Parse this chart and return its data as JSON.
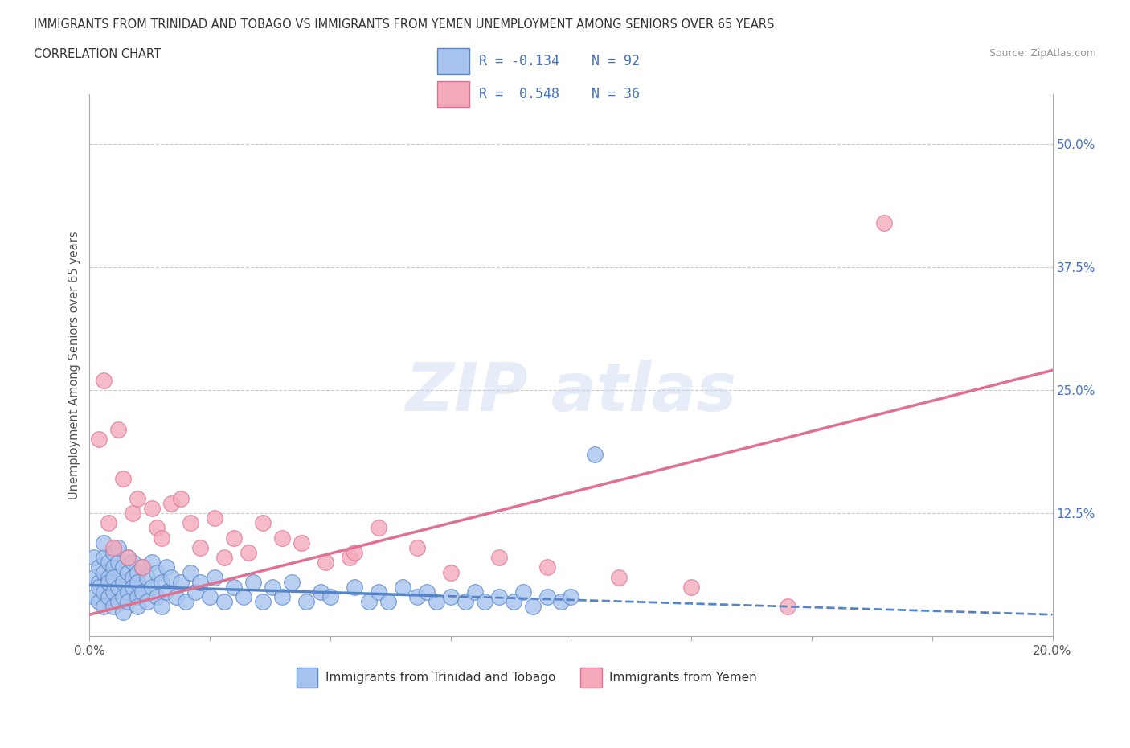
{
  "title_line1": "IMMIGRANTS FROM TRINIDAD AND TOBAGO VS IMMIGRANTS FROM YEMEN UNEMPLOYMENT AMONG SENIORS OVER 65 YEARS",
  "title_line2": "CORRELATION CHART",
  "source_text": "Source: ZipAtlas.com",
  "ylabel": "Unemployment Among Seniors over 65 years",
  "xlim": [
    0.0,
    0.2
  ],
  "ylim": [
    0.0,
    0.55
  ],
  "xticks": [
    0.0,
    0.025,
    0.05,
    0.075,
    0.1,
    0.125,
    0.15,
    0.175,
    0.2
  ],
  "xticklabels": [
    "0.0%",
    "",
    "",
    "",
    "",
    "",
    "",
    "",
    "20.0%"
  ],
  "yticks": [
    0.0,
    0.125,
    0.25,
    0.375,
    0.5
  ],
  "yticklabels": [
    "",
    "12.5%",
    "25.0%",
    "37.5%",
    "50.0%"
  ],
  "legend_R1": "R = -0.134",
  "legend_N1": "N = 92",
  "legend_R2": "R =  0.548",
  "legend_N2": "N = 36",
  "color_blue": "#a8c4ee",
  "color_pink": "#f4aabb",
  "color_blue_line": "#5585c8",
  "color_pink_line": "#e07090",
  "color_text_blue": "#4472c4",
  "trinidad_x": [
    0.001,
    0.001,
    0.001,
    0.002,
    0.002,
    0.002,
    0.002,
    0.003,
    0.003,
    0.003,
    0.003,
    0.003,
    0.004,
    0.004,
    0.004,
    0.004,
    0.005,
    0.005,
    0.005,
    0.005,
    0.005,
    0.006,
    0.006,
    0.006,
    0.006,
    0.007,
    0.007,
    0.007,
    0.007,
    0.008,
    0.008,
    0.008,
    0.008,
    0.009,
    0.009,
    0.009,
    0.01,
    0.01,
    0.01,
    0.01,
    0.011,
    0.011,
    0.012,
    0.012,
    0.013,
    0.013,
    0.014,
    0.014,
    0.015,
    0.015,
    0.016,
    0.016,
    0.017,
    0.018,
    0.019,
    0.02,
    0.021,
    0.022,
    0.023,
    0.025,
    0.026,
    0.028,
    0.03,
    0.032,
    0.034,
    0.036,
    0.038,
    0.04,
    0.042,
    0.045,
    0.048,
    0.05,
    0.055,
    0.058,
    0.06,
    0.062,
    0.065,
    0.068,
    0.07,
    0.072,
    0.075,
    0.078,
    0.08,
    0.082,
    0.085,
    0.088,
    0.09,
    0.092,
    0.095,
    0.098,
    0.1,
    0.105
  ],
  "trinidad_y": [
    0.06,
    0.04,
    0.08,
    0.055,
    0.035,
    0.07,
    0.05,
    0.065,
    0.045,
    0.08,
    0.03,
    0.095,
    0.06,
    0.04,
    0.075,
    0.055,
    0.07,
    0.045,
    0.085,
    0.03,
    0.06,
    0.05,
    0.075,
    0.035,
    0.09,
    0.055,
    0.04,
    0.07,
    0.025,
    0.065,
    0.045,
    0.08,
    0.035,
    0.06,
    0.05,
    0.075,
    0.04,
    0.065,
    0.03,
    0.055,
    0.07,
    0.045,
    0.06,
    0.035,
    0.075,
    0.05,
    0.04,
    0.065,
    0.03,
    0.055,
    0.07,
    0.045,
    0.06,
    0.04,
    0.055,
    0.035,
    0.065,
    0.045,
    0.055,
    0.04,
    0.06,
    0.035,
    0.05,
    0.04,
    0.055,
    0.035,
    0.05,
    0.04,
    0.055,
    0.035,
    0.045,
    0.04,
    0.05,
    0.035,
    0.045,
    0.035,
    0.05,
    0.04,
    0.045,
    0.035,
    0.04,
    0.035,
    0.045,
    0.035,
    0.04,
    0.035,
    0.045,
    0.03,
    0.04,
    0.035,
    0.04,
    0.185
  ],
  "yemen_x": [
    0.002,
    0.003,
    0.004,
    0.005,
    0.006,
    0.007,
    0.008,
    0.009,
    0.01,
    0.011,
    0.013,
    0.014,
    0.015,
    0.017,
    0.019,
    0.021,
    0.023,
    0.026,
    0.028,
    0.03,
    0.033,
    0.036,
    0.04,
    0.044,
    0.049,
    0.054,
    0.06,
    0.068,
    0.075,
    0.085,
    0.095,
    0.11,
    0.125,
    0.145,
    0.165,
    0.055
  ],
  "yemen_y": [
    0.2,
    0.26,
    0.115,
    0.09,
    0.21,
    0.16,
    0.08,
    0.125,
    0.14,
    0.07,
    0.13,
    0.11,
    0.1,
    0.135,
    0.14,
    0.115,
    0.09,
    0.12,
    0.08,
    0.1,
    0.085,
    0.115,
    0.1,
    0.095,
    0.075,
    0.08,
    0.11,
    0.09,
    0.065,
    0.08,
    0.07,
    0.06,
    0.05,
    0.03,
    0.42,
    0.085
  ],
  "trend_tt_x0": 0.0,
  "trend_tt_x1": 0.2,
  "trend_tt_y0": 0.052,
  "trend_tt_y1": 0.022,
  "trend_tt_solid_end": 0.072,
  "trend_ye_x0": 0.0,
  "trend_ye_x1": 0.2,
  "trend_ye_y0": 0.022,
  "trend_ye_y1": 0.27
}
